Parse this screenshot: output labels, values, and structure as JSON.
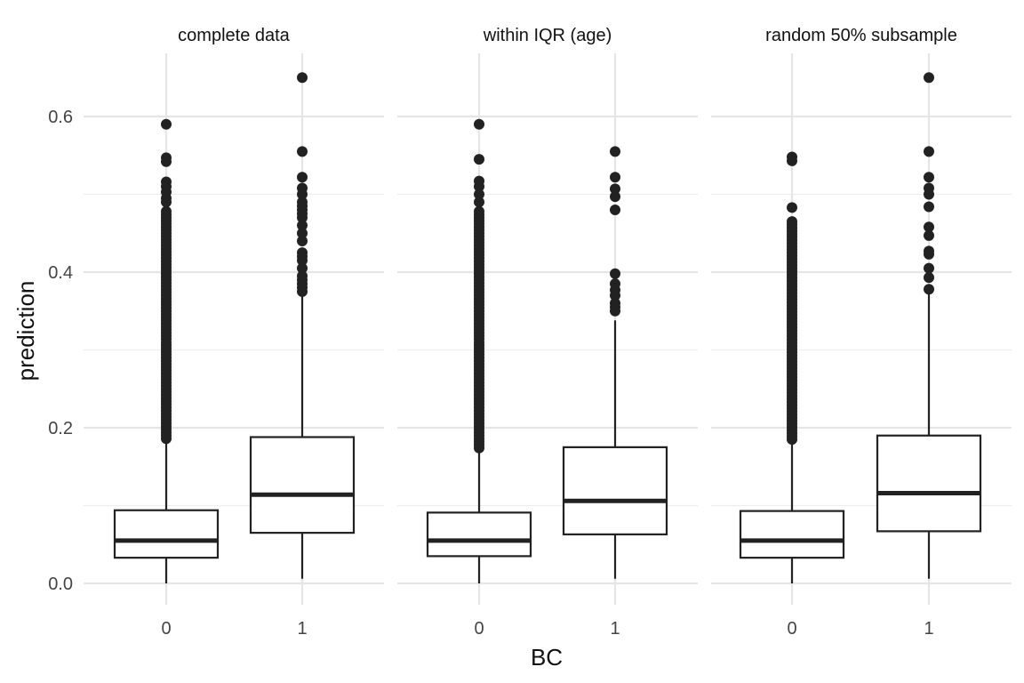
{
  "chart_data": {
    "type": "boxplot",
    "xlabel": "BC",
    "ylabel": "prediction",
    "ylim": [
      0.0,
      0.68
    ],
    "yticks": [
      0.0,
      0.2,
      0.4,
      0.6
    ],
    "ytick_labels": [
      "0.0",
      "0.2",
      "0.4",
      "0.6"
    ],
    "categories": [
      "0",
      "1"
    ],
    "grid": true,
    "facets": [
      {
        "label": "complete data",
        "groups": [
          {
            "x": "0",
            "min": 0.0,
            "q1": 0.033,
            "median": 0.055,
            "q3": 0.094,
            "whisker_high": 0.185,
            "outlier_band": [
              0.186,
              0.48
            ],
            "outliers": [
              0.49,
              0.495,
              0.503,
              0.51,
              0.516,
              0.542,
              0.547,
              0.59
            ]
          },
          {
            "x": "1",
            "min": 0.006,
            "q1": 0.065,
            "median": 0.114,
            "q3": 0.188,
            "whisker_high": 0.37,
            "outliers": [
              0.375,
              0.38,
              0.385,
              0.39,
              0.395,
              0.405,
              0.415,
              0.42,
              0.425,
              0.44,
              0.45,
              0.46,
              0.47,
              0.475,
              0.48,
              0.485,
              0.49,
              0.5,
              0.508,
              0.522,
              0.555,
              0.65
            ]
          }
        ]
      },
      {
        "label": "within IQR (age)",
        "groups": [
          {
            "x": "0",
            "min": 0.0,
            "q1": 0.035,
            "median": 0.055,
            "q3": 0.091,
            "whisker_high": 0.173,
            "outlier_band": [
              0.174,
              0.48
            ],
            "outliers": [
              0.49,
              0.5,
              0.51,
              0.517,
              0.545,
              0.59
            ]
          },
          {
            "x": "1",
            "min": 0.006,
            "q1": 0.063,
            "median": 0.106,
            "q3": 0.175,
            "whisker_high": 0.338,
            "outliers": [
              0.35,
              0.355,
              0.36,
              0.37,
              0.377,
              0.385,
              0.398,
              0.48,
              0.497,
              0.507,
              0.522,
              0.555
            ]
          }
        ]
      },
      {
        "label": "random 50% subsample",
        "groups": [
          {
            "x": "0",
            "min": 0.0,
            "q1": 0.033,
            "median": 0.055,
            "q3": 0.093,
            "whisker_high": 0.184,
            "outlier_band": [
              0.185,
              0.465
            ],
            "outliers": [
              0.483,
              0.543,
              0.548
            ]
          },
          {
            "x": "1",
            "min": 0.006,
            "q1": 0.067,
            "median": 0.116,
            "q3": 0.19,
            "whisker_high": 0.375,
            "outliers": [
              0.378,
              0.393,
              0.405,
              0.423,
              0.427,
              0.447,
              0.458,
              0.484,
              0.5,
              0.508,
              0.522,
              0.555,
              0.65
            ]
          }
        ]
      }
    ]
  }
}
